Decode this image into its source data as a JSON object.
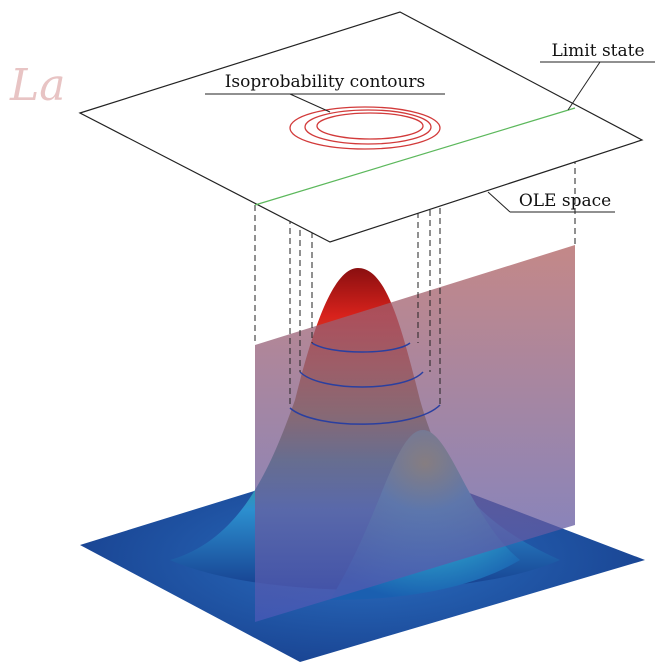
{
  "watermark": "La",
  "labels": {
    "contours": "Isoprobability contours",
    "limit_state": "Limit state",
    "ole_space": "OLE space"
  }
}
